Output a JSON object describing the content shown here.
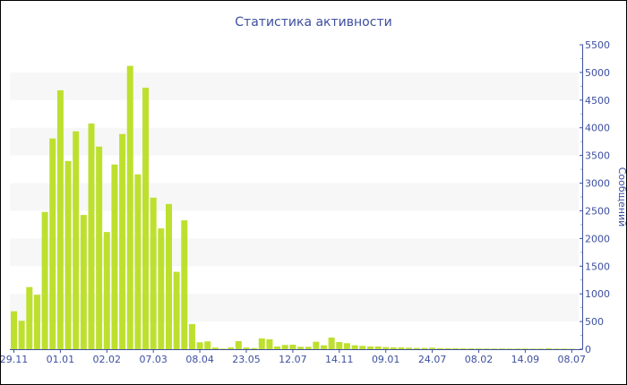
{
  "chart_data": {
    "type": "bar",
    "title": "Статистика активности",
    "xlabel": "",
    "ylabel": "Сообщений",
    "ylim": [
      0,
      5500
    ],
    "yticks": [
      0,
      500,
      1000,
      1500,
      2000,
      2500,
      3000,
      3500,
      4000,
      4500,
      5000,
      5500
    ],
    "y_axis_side": "right",
    "grid": "alternating horizontal bands",
    "x_tick_labels": [
      {
        "index": 0,
        "label": "29.11"
      },
      {
        "index": 6,
        "label": "01.01"
      },
      {
        "index": 12,
        "label": "02.02"
      },
      {
        "index": 18,
        "label": "07.03"
      },
      {
        "index": 24,
        "label": "08.04"
      },
      {
        "index": 30,
        "label": "23.05"
      },
      {
        "index": 36,
        "label": "12.07"
      },
      {
        "index": 42,
        "label": "14.11"
      },
      {
        "index": 48,
        "label": "09.01"
      },
      {
        "index": 54,
        "label": "24.07"
      },
      {
        "index": 60,
        "label": "08.02"
      },
      {
        "index": 66,
        "label": "14.09"
      },
      {
        "index": 72,
        "label": "08.07"
      }
    ],
    "values": [
      685,
      513,
      1123,
      983,
      2480,
      3807,
      4677,
      3400,
      3936,
      2425,
      4077,
      3661,
      2117,
      3337,
      3888,
      5119,
      3159,
      4725,
      2738,
      2182,
      2624,
      1398,
      2328,
      454,
      125,
      141,
      30,
      10,
      30,
      146,
      30,
      20,
      194,
      179,
      49,
      76,
      81,
      43,
      43,
      135,
      70,
      210,
      130,
      108,
      70,
      60,
      49,
      49,
      38,
      32,
      32,
      27,
      22,
      22,
      27,
      16,
      16,
      15,
      14,
      14,
      13,
      12,
      12,
      12,
      11,
      11,
      12,
      10,
      10,
      15,
      10,
      10,
      8
    ],
    "colors": {
      "bar": "#bde02f",
      "axis": "#3d4f9f",
      "band": "#f7f7f7"
    }
  }
}
